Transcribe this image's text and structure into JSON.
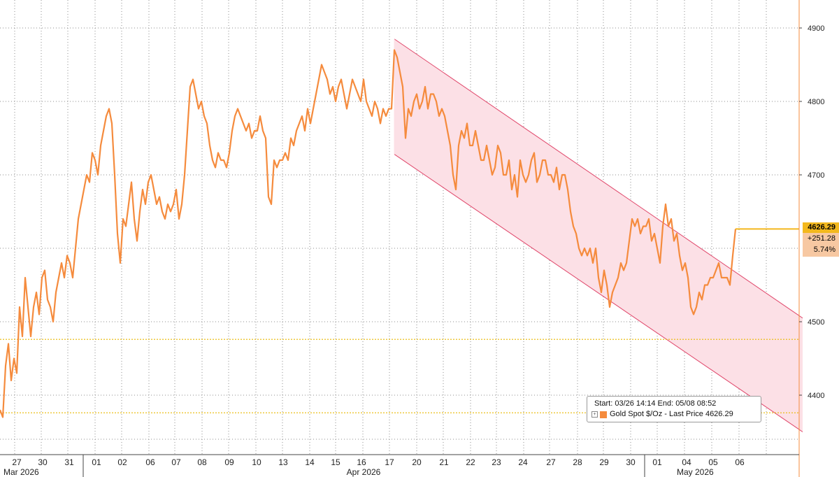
{
  "chart_data": {
    "type": "line",
    "series": [
      {
        "name": "Gold Spot $/Oz - Last Price",
        "color": "#f58b3d",
        "x": [
          "03/26",
          "03/27",
          "03/30",
          "03/31",
          "04/01",
          "04/02",
          "04/06",
          "04/07",
          "04/08",
          "04/09",
          "04/10",
          "04/13",
          "04/14",
          "04/15",
          "04/16",
          "04/17",
          "04/20",
          "04/21",
          "04/22",
          "04/23",
          "04/24",
          "04/27",
          "04/28",
          "04/29",
          "04/30",
          "05/01",
          "05/04",
          "05/05",
          "05/06",
          "05/07",
          "05/08"
        ],
        "points": [
          [
            0,
            4380
          ],
          [
            4,
            4370
          ],
          [
            8,
            4440
          ],
          [
            12,
            4470
          ],
          [
            16,
            4420
          ],
          [
            20,
            4450
          ],
          [
            24,
            4430
          ],
          [
            28,
            4520
          ],
          [
            32,
            4480
          ],
          [
            36,
            4560
          ],
          [
            40,
            4520
          ],
          [
            44,
            4480
          ],
          [
            48,
            4520
          ],
          [
            52,
            4540
          ],
          [
            56,
            4510
          ],
          [
            60,
            4560
          ],
          [
            64,
            4570
          ],
          [
            68,
            4530
          ],
          [
            72,
            4520
          ],
          [
            76,
            4500
          ],
          [
            80,
            4540
          ],
          [
            84,
            4560
          ],
          [
            88,
            4580
          ],
          [
            92,
            4560
          ],
          [
            96,
            4590
          ],
          [
            100,
            4580
          ],
          [
            104,
            4560
          ],
          [
            108,
            4600
          ],
          [
            112,
            4640
          ],
          [
            116,
            4660
          ],
          [
            120,
            4680
          ],
          [
            124,
            4700
          ],
          [
            128,
            4690
          ],
          [
            132,
            4730
          ],
          [
            136,
            4720
          ],
          [
            140,
            4700
          ],
          [
            144,
            4740
          ],
          [
            148,
            4760
          ],
          [
            152,
            4780
          ],
          [
            156,
            4790
          ],
          [
            160,
            4770
          ],
          [
            164,
            4700
          ],
          [
            168,
            4620
          ],
          [
            172,
            4580
          ],
          [
            176,
            4640
          ],
          [
            180,
            4630
          ],
          [
            184,
            4660
          ],
          [
            188,
            4690
          ],
          [
            192,
            4640
          ],
          [
            196,
            4610
          ],
          [
            200,
            4650
          ],
          [
            204,
            4680
          ],
          [
            208,
            4660
          ],
          [
            212,
            4690
          ],
          [
            216,
            4700
          ],
          [
            220,
            4680
          ],
          [
            224,
            4660
          ],
          [
            228,
            4670
          ],
          [
            232,
            4650
          ],
          [
            236,
            4640
          ],
          [
            240,
            4660
          ],
          [
            244,
            4650
          ],
          [
            248,
            4660
          ],
          [
            252,
            4680
          ],
          [
            256,
            4640
          ],
          [
            260,
            4660
          ],
          [
            264,
            4700
          ],
          [
            268,
            4760
          ],
          [
            272,
            4820
          ],
          [
            276,
            4830
          ],
          [
            280,
            4810
          ],
          [
            284,
            4790
          ],
          [
            288,
            4800
          ],
          [
            292,
            4780
          ],
          [
            296,
            4770
          ],
          [
            300,
            4740
          ],
          [
            304,
            4720
          ],
          [
            308,
            4710
          ],
          [
            312,
            4730
          ],
          [
            316,
            4720
          ],
          [
            320,
            4720
          ],
          [
            324,
            4710
          ],
          [
            328,
            4730
          ],
          [
            332,
            4760
          ],
          [
            336,
            4780
          ],
          [
            340,
            4790
          ],
          [
            344,
            4780
          ],
          [
            348,
            4770
          ],
          [
            352,
            4760
          ],
          [
            356,
            4770
          ],
          [
            360,
            4750
          ],
          [
            364,
            4760
          ],
          [
            368,
            4760
          ],
          [
            372,
            4780
          ],
          [
            376,
            4760
          ],
          [
            380,
            4750
          ],
          [
            384,
            4670
          ],
          [
            388,
            4660
          ],
          [
            392,
            4720
          ],
          [
            396,
            4710
          ],
          [
            400,
            4720
          ],
          [
            404,
            4720
          ],
          [
            408,
            4730
          ],
          [
            412,
            4720
          ],
          [
            416,
            4750
          ],
          [
            420,
            4740
          ],
          [
            424,
            4760
          ],
          [
            428,
            4770
          ],
          [
            432,
            4780
          ],
          [
            436,
            4760
          ],
          [
            440,
            4790
          ],
          [
            444,
            4770
          ],
          [
            448,
            4790
          ],
          [
            452,
            4810
          ],
          [
            456,
            4830
          ],
          [
            460,
            4850
          ],
          [
            464,
            4840
          ],
          [
            468,
            4830
          ],
          [
            472,
            4810
          ],
          [
            476,
            4820
          ],
          [
            480,
            4800
          ],
          [
            484,
            4820
          ],
          [
            488,
            4830
          ],
          [
            492,
            4810
          ],
          [
            496,
            4790
          ],
          [
            500,
            4810
          ],
          [
            504,
            4830
          ],
          [
            508,
            4820
          ],
          [
            512,
            4810
          ],
          [
            516,
            4800
          ],
          [
            520,
            4830
          ],
          [
            524,
            4800
          ],
          [
            528,
            4790
          ],
          [
            532,
            4780
          ],
          [
            536,
            4800
          ],
          [
            540,
            4790
          ],
          [
            544,
            4770
          ],
          [
            548,
            4790
          ],
          [
            552,
            4780
          ],
          [
            556,
            4790
          ],
          [
            560,
            4790
          ],
          [
            564,
            4870
          ],
          [
            568,
            4860
          ],
          [
            572,
            4840
          ],
          [
            576,
            4820
          ],
          [
            580,
            4750
          ],
          [
            584,
            4790
          ],
          [
            588,
            4780
          ],
          [
            592,
            4800
          ],
          [
            596,
            4810
          ],
          [
            600,
            4790
          ],
          [
            604,
            4800
          ],
          [
            608,
            4820
          ],
          [
            612,
            4790
          ],
          [
            616,
            4810
          ],
          [
            620,
            4810
          ],
          [
            624,
            4800
          ],
          [
            628,
            4780
          ],
          [
            632,
            4790
          ],
          [
            636,
            4780
          ],
          [
            640,
            4760
          ],
          [
            644,
            4740
          ],
          [
            648,
            4700
          ],
          [
            652,
            4680
          ],
          [
            656,
            4740
          ],
          [
            660,
            4760
          ],
          [
            664,
            4750
          ],
          [
            668,
            4770
          ],
          [
            672,
            4740
          ],
          [
            676,
            4740
          ],
          [
            680,
            4760
          ],
          [
            684,
            4740
          ],
          [
            688,
            4720
          ],
          [
            692,
            4720
          ],
          [
            696,
            4740
          ],
          [
            700,
            4720
          ],
          [
            704,
            4700
          ],
          [
            708,
            4710
          ],
          [
            712,
            4740
          ],
          [
            716,
            4730
          ],
          [
            720,
            4700
          ],
          [
            724,
            4700
          ],
          [
            728,
            4720
          ],
          [
            732,
            4680
          ],
          [
            736,
            4700
          ],
          [
            740,
            4670
          ],
          [
            744,
            4720
          ],
          [
            748,
            4700
          ],
          [
            752,
            4690
          ],
          [
            756,
            4700
          ],
          [
            760,
            4720
          ],
          [
            764,
            4730
          ],
          [
            768,
            4690
          ],
          [
            772,
            4700
          ],
          [
            776,
            4720
          ],
          [
            780,
            4720
          ],
          [
            784,
            4700
          ],
          [
            788,
            4700
          ],
          [
            792,
            4690
          ],
          [
            796,
            4710
          ],
          [
            800,
            4680
          ],
          [
            804,
            4700
          ],
          [
            808,
            4700
          ],
          [
            812,
            4680
          ],
          [
            816,
            4650
          ],
          [
            820,
            4630
          ],
          [
            824,
            4620
          ],
          [
            828,
            4600
          ],
          [
            832,
            4590
          ],
          [
            836,
            4600
          ],
          [
            840,
            4590
          ],
          [
            844,
            4600
          ],
          [
            848,
            4580
          ],
          [
            852,
            4600
          ],
          [
            856,
            4560
          ],
          [
            860,
            4540
          ],
          [
            864,
            4570
          ],
          [
            868,
            4550
          ],
          [
            872,
            4520
          ],
          [
            876,
            4540
          ],
          [
            880,
            4550
          ],
          [
            884,
            4560
          ],
          [
            888,
            4580
          ],
          [
            892,
            4570
          ],
          [
            896,
            4580
          ],
          [
            900,
            4610
          ],
          [
            904,
            4640
          ],
          [
            908,
            4630
          ],
          [
            912,
            4640
          ],
          [
            916,
            4620
          ],
          [
            920,
            4630
          ],
          [
            924,
            4630
          ],
          [
            928,
            4640
          ],
          [
            932,
            4610
          ],
          [
            936,
            4620
          ],
          [
            940,
            4600
          ],
          [
            944,
            4580
          ],
          [
            948,
            4630
          ],
          [
            952,
            4660
          ],
          [
            956,
            4630
          ],
          [
            960,
            4640
          ],
          [
            964,
            4610
          ],
          [
            968,
            4620
          ],
          [
            972,
            4590
          ],
          [
            976,
            4570
          ],
          [
            980,
            4580
          ],
          [
            984,
            4560
          ],
          [
            988,
            4520
          ],
          [
            992,
            4510
          ],
          [
            996,
            4520
          ],
          [
            1000,
            4540
          ],
          [
            1004,
            4530
          ],
          [
            1008,
            4550
          ],
          [
            1012,
            4550
          ],
          [
            1016,
            4560
          ],
          [
            1020,
            4560
          ],
          [
            1024,
            4570
          ],
          [
            1028,
            4580
          ],
          [
            1032,
            4560
          ],
          [
            1036,
            4560
          ],
          [
            1040,
            4560
          ],
          [
            1044,
            4550
          ],
          [
            1048,
            4590
          ],
          [
            1052,
            4626.29
          ]
        ]
      }
    ],
    "last_price": "4626.29",
    "change_abs": "+251.28",
    "change_pct": "5.74%",
    "ylim": [
      4340,
      4980
    ],
    "y_ticks": [
      4400,
      4500,
      4600,
      4700,
      4800,
      4900
    ],
    "y_tick_labels": [
      "4400",
      "4500",
      "4700",
      "4800",
      "4900"
    ],
    "x_tick_labels": [
      "27",
      "30",
      "31",
      "01",
      "02",
      "06",
      "07",
      "08",
      "09",
      "10",
      "13",
      "14",
      "15",
      "16",
      "17",
      "20",
      "21",
      "22",
      "23",
      "24",
      "27",
      "28",
      "29",
      "30",
      "01",
      "04",
      "05",
      "06"
    ],
    "month_labels": [
      "Mar 2026",
      "Apr 2026",
      "May 2026"
    ],
    "horizontal_lines": [
      4476,
      4376
    ],
    "channel": {
      "upper": [
        [
          564,
          4885
        ],
        [
          1148,
          4505
        ]
      ],
      "lower": [
        [
          564,
          4728
        ],
        [
          1148,
          4350
        ]
      ],
      "fill": "#fce0e6",
      "stroke": "#e0476b"
    },
    "grid": true,
    "legend_position": "bottom-right"
  },
  "legend": {
    "range_text": "Start: 03/26 14:14 End: 05/08 08:52",
    "series_text": "Gold Spot $/Oz - Last Price 4626.29"
  },
  "colors": {
    "line": "#f58b3d",
    "last_price_line": "#f3b81d",
    "ref_lines": "#e8b800",
    "grid": "#8c8c8c"
  }
}
